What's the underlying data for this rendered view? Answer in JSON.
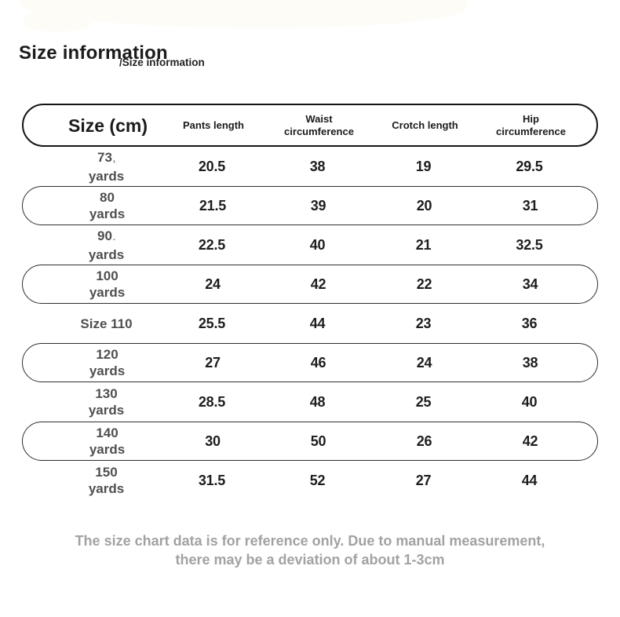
{
  "title": "Size information",
  "subtitle": "/Size information",
  "table": {
    "header": {
      "size_col": "Size (cm)",
      "cols": [
        "Pants length",
        "Waist\ncircumference",
        "Crotch length",
        "Hip\ncircumference"
      ]
    },
    "rows": [
      {
        "size": [
          "73",
          "yards"
        ],
        "suffix": ",",
        "values": [
          "20.5",
          "38",
          "19",
          "29.5"
        ],
        "pill": false
      },
      {
        "size": [
          "80",
          "yards"
        ],
        "suffix": "",
        "values": [
          "21.5",
          "39",
          "20",
          "31"
        ],
        "pill": true
      },
      {
        "size": [
          "90",
          "yards"
        ],
        "suffix": ".",
        "values": [
          "22.5",
          "40",
          "21",
          "32.5"
        ],
        "pill": false
      },
      {
        "size": [
          "100",
          "yards"
        ],
        "suffix": "",
        "values": [
          "24",
          "42",
          "22",
          "34"
        ],
        "pill": true
      },
      {
        "size": [
          "Size 110"
        ],
        "suffix": "",
        "values": [
          "25.5",
          "44",
          "23",
          "36"
        ],
        "pill": false
      },
      {
        "size": [
          "120",
          "yards"
        ],
        "suffix": "",
        "values": [
          "27",
          "46",
          "24",
          "38"
        ],
        "pill": true
      },
      {
        "size": [
          "130",
          "yards"
        ],
        "suffix": "",
        "values": [
          "28.5",
          "48",
          "25",
          "40"
        ],
        "pill": false
      },
      {
        "size": [
          "140",
          "yards"
        ],
        "suffix": "",
        "values": [
          "30",
          "50",
          "26",
          "42"
        ],
        "pill": true
      },
      {
        "size": [
          "150",
          "yards"
        ],
        "suffix": "",
        "values": [
          "31.5",
          "52",
          "27",
          "44"
        ],
        "pill": false
      }
    ]
  },
  "footer": {
    "line1": "The size chart data is for reference only. Due to manual measurement,",
    "line2": "there may be a deviation of about 1-3cm"
  },
  "colors": {
    "background": "#ffffff",
    "header_border": "#141414",
    "row_pill_border": "#2e2e2e",
    "size_label_text": "#4f4f4f",
    "value_text": "#1d1d1d",
    "footer_text": "#a2a2a2",
    "title_text": "#1b1b1b"
  }
}
